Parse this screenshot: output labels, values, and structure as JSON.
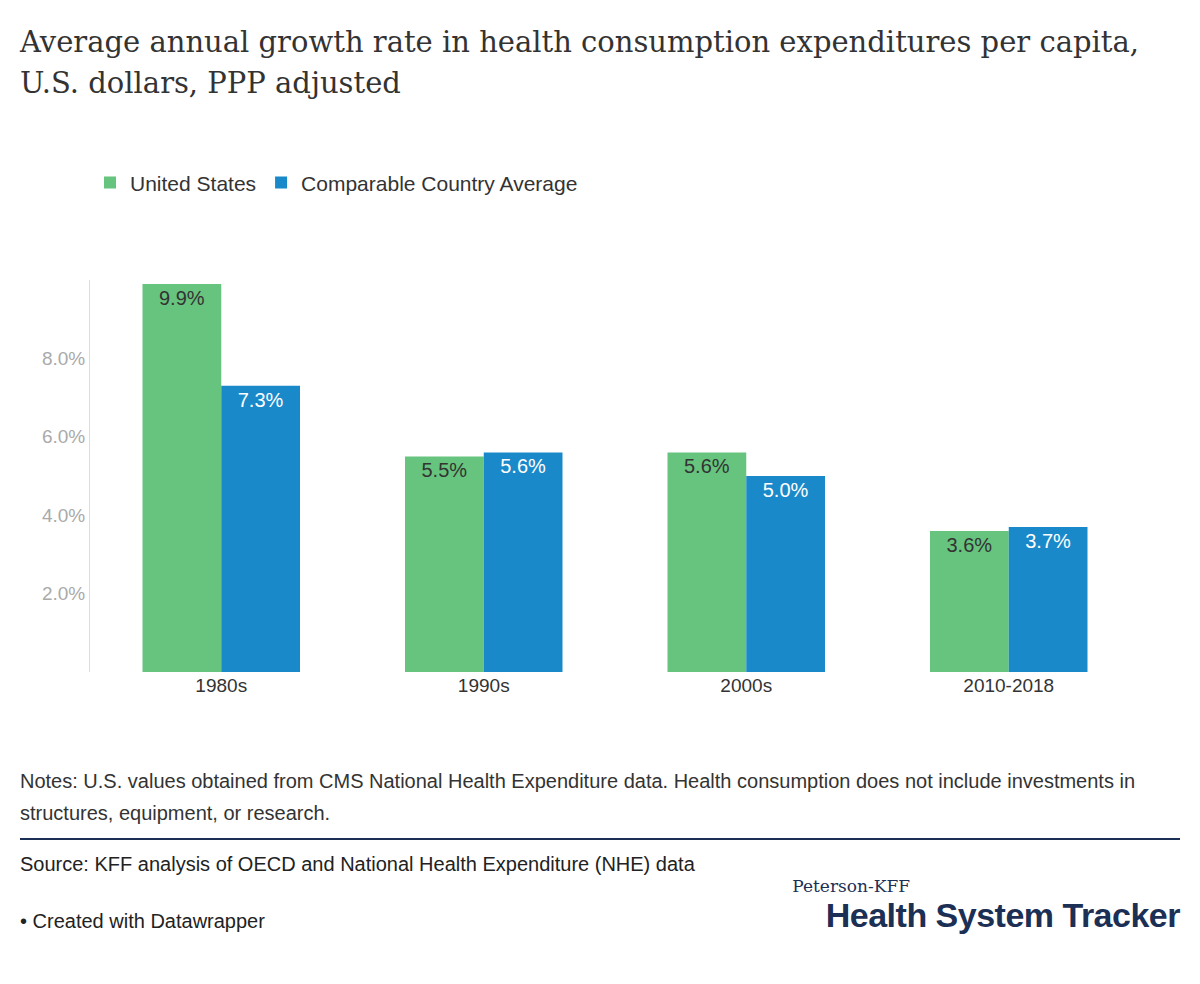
{
  "chart_data": {
    "type": "bar",
    "title": "Average annual growth rate in health consumption expenditures per capita, U.S. dollars, PPP adjusted",
    "categories": [
      "1980s",
      "1990s",
      "2000s",
      "2010-2018"
    ],
    "series": [
      {
        "name": "United States",
        "color": "#67c47e",
        "values": [
          9.9,
          5.5,
          5.6,
          3.6
        ],
        "value_labels": [
          "9.9%",
          "5.5%",
          "5.6%",
          "3.6%"
        ]
      },
      {
        "name": "Comparable Country Average",
        "color": "#1a89c9",
        "values": [
          7.3,
          5.6,
          5.0,
          3.7
        ],
        "value_labels": [
          "7.3%",
          "5.6%",
          "5.0%",
          "3.7%"
        ]
      }
    ],
    "ylim": [
      0,
      10
    ],
    "yticks": [
      {
        "value": 2,
        "label": "2.0%"
      },
      {
        "value": 4,
        "label": "4.0%"
      },
      {
        "value": 6,
        "label": "6.0%"
      },
      {
        "value": 8,
        "label": "8.0%"
      }
    ],
    "grid": false,
    "data_labels": true,
    "legend": "top-left",
    "notes": "Notes: U.S. values obtained from CMS National Health Expenditure data. Health consumption does not include investments in structures, equipment, or research.",
    "source": "Source: KFF analysis of OECD and National Health Expenditure (NHE) data",
    "credit": "• Created with Datawrapper",
    "brand_top": "Peterson-KFF",
    "brand_name": "Health System Tracker"
  }
}
